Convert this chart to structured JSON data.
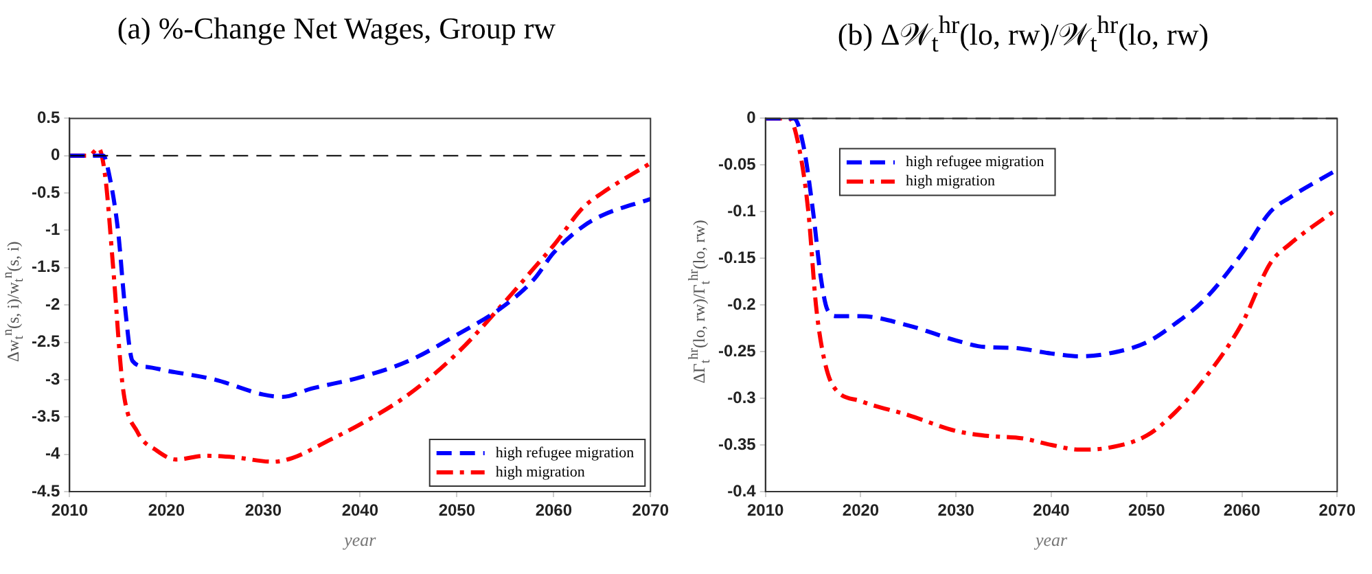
{
  "chart_data": [
    {
      "type": "line",
      "title": "(a) %-Change Net Wages, Group rw",
      "xlabel": "year",
      "ylabel": "Δw$_{t}$$^{n}$(s, i)/w$_{t}$$^{n}$(s, i)",
      "xlim": [
        2010,
        2070
      ],
      "xticks": [
        2010,
        2020,
        2030,
        2040,
        2050,
        2060,
        2070
      ],
      "ylim": [
        -4.5,
        0.5
      ],
      "yticks": [
        -4.5,
        -4,
        -3.5,
        -3,
        -2.5,
        -2,
        -1.5,
        -1,
        -0.5,
        0,
        0.5
      ],
      "grid": false,
      "legend": "bottom right",
      "marker": "none",
      "ref_lines": [
        {
          "axis": "y",
          "value": 0,
          "color": "#000000",
          "line_style": "dashed"
        }
      ],
      "series": [
        {
          "name": "high refugee migration",
          "color": "#0000ff",
          "line_style": "dashed",
          "x": [
            2010,
            2013,
            2013.5,
            2014,
            2015,
            2015.7,
            2016.5,
            2018,
            2020,
            2025,
            2030,
            2032,
            2035,
            2040,
            2045,
            2050,
            2055,
            2058,
            2060,
            2063,
            2065,
            2070
          ],
          "values": [
            0,
            0,
            0,
            -0.2,
            -1.0,
            -2.0,
            -2.75,
            -2.83,
            -2.88,
            -3.0,
            -3.2,
            -3.23,
            -3.12,
            -2.97,
            -2.75,
            -2.4,
            -2.0,
            -1.65,
            -1.3,
            -0.95,
            -0.8,
            -0.58
          ]
        },
        {
          "name": "high migration",
          "color": "#ff0000",
          "line_style": "dashdot",
          "x": [
            2010,
            2012,
            2013,
            2013.7,
            2014.5,
            2015.5,
            2017,
            2019,
            2021,
            2024,
            2027,
            2031,
            2033,
            2037,
            2040,
            2045,
            2050,
            2055,
            2058,
            2060,
            2063,
            2065,
            2070
          ],
          "values": [
            0,
            0,
            0.1,
            -0.3,
            -1.5,
            -3.1,
            -3.7,
            -3.95,
            -4.07,
            -4.02,
            -4.04,
            -4.1,
            -4.05,
            -3.8,
            -3.6,
            -3.2,
            -2.65,
            -1.95,
            -1.5,
            -1.2,
            -0.7,
            -0.5,
            -0.1
          ]
        }
      ]
    },
    {
      "type": "line",
      "title": "(b) Δ𝒲$_{t}$$^{hr}$(lo, rw)/𝒲$_{t}$$^{hr}$(lo, rw)",
      "xlabel": "year",
      "ylabel": "ΔΓ$_{t}$$^{hr}$(lo, rw)/Γ$_{t}$$^{hr}$(lo, rw)",
      "xlim": [
        2010,
        2070
      ],
      "xticks": [
        2010,
        2020,
        2030,
        2040,
        2050,
        2060,
        2070
      ],
      "ylim": [
        -0.4,
        0
      ],
      "yticks": [
        -0.4,
        -0.35,
        -0.3,
        -0.25,
        -0.2,
        -0.15,
        -0.1,
        -0.05,
        0
      ],
      "grid": false,
      "legend": "top left",
      "marker": "none",
      "ref_lines": [
        {
          "axis": "y",
          "value": 0,
          "color": "#000000",
          "line_style": "dashed"
        }
      ],
      "series": [
        {
          "name": "high refugee migration",
          "color": "#0000ff",
          "line_style": "dashed",
          "x": [
            2010,
            2013,
            2014,
            2015,
            2015.8,
            2016.5,
            2017.5,
            2020,
            2025,
            2030,
            2033,
            2036,
            2040,
            2043,
            2046,
            2050,
            2053,
            2056,
            2060,
            2063,
            2065,
            2070
          ],
          "values": [
            0,
            0,
            -0.03,
            -0.1,
            -0.17,
            -0.205,
            -0.212,
            -0.212,
            -0.222,
            -0.238,
            -0.245,
            -0.246,
            -0.252,
            -0.255,
            -0.252,
            -0.24,
            -0.22,
            -0.195,
            -0.145,
            -0.1,
            -0.085,
            -0.055
          ]
        },
        {
          "name": "high migration",
          "color": "#ff0000",
          "line_style": "dashdot",
          "x": [
            2010,
            2012.5,
            2013.5,
            2014.5,
            2015.3,
            2016,
            2017,
            2020,
            2025,
            2030,
            2033,
            2037,
            2040,
            2043,
            2046,
            2050,
            2053,
            2056,
            2060,
            2063,
            2065,
            2070
          ],
          "values": [
            0,
            0,
            -0.03,
            -0.1,
            -0.2,
            -0.25,
            -0.285,
            -0.303,
            -0.318,
            -0.335,
            -0.34,
            -0.343,
            -0.35,
            -0.355,
            -0.353,
            -0.34,
            -0.315,
            -0.28,
            -0.22,
            -0.155,
            -0.135,
            -0.097
          ]
        }
      ]
    }
  ]
}
